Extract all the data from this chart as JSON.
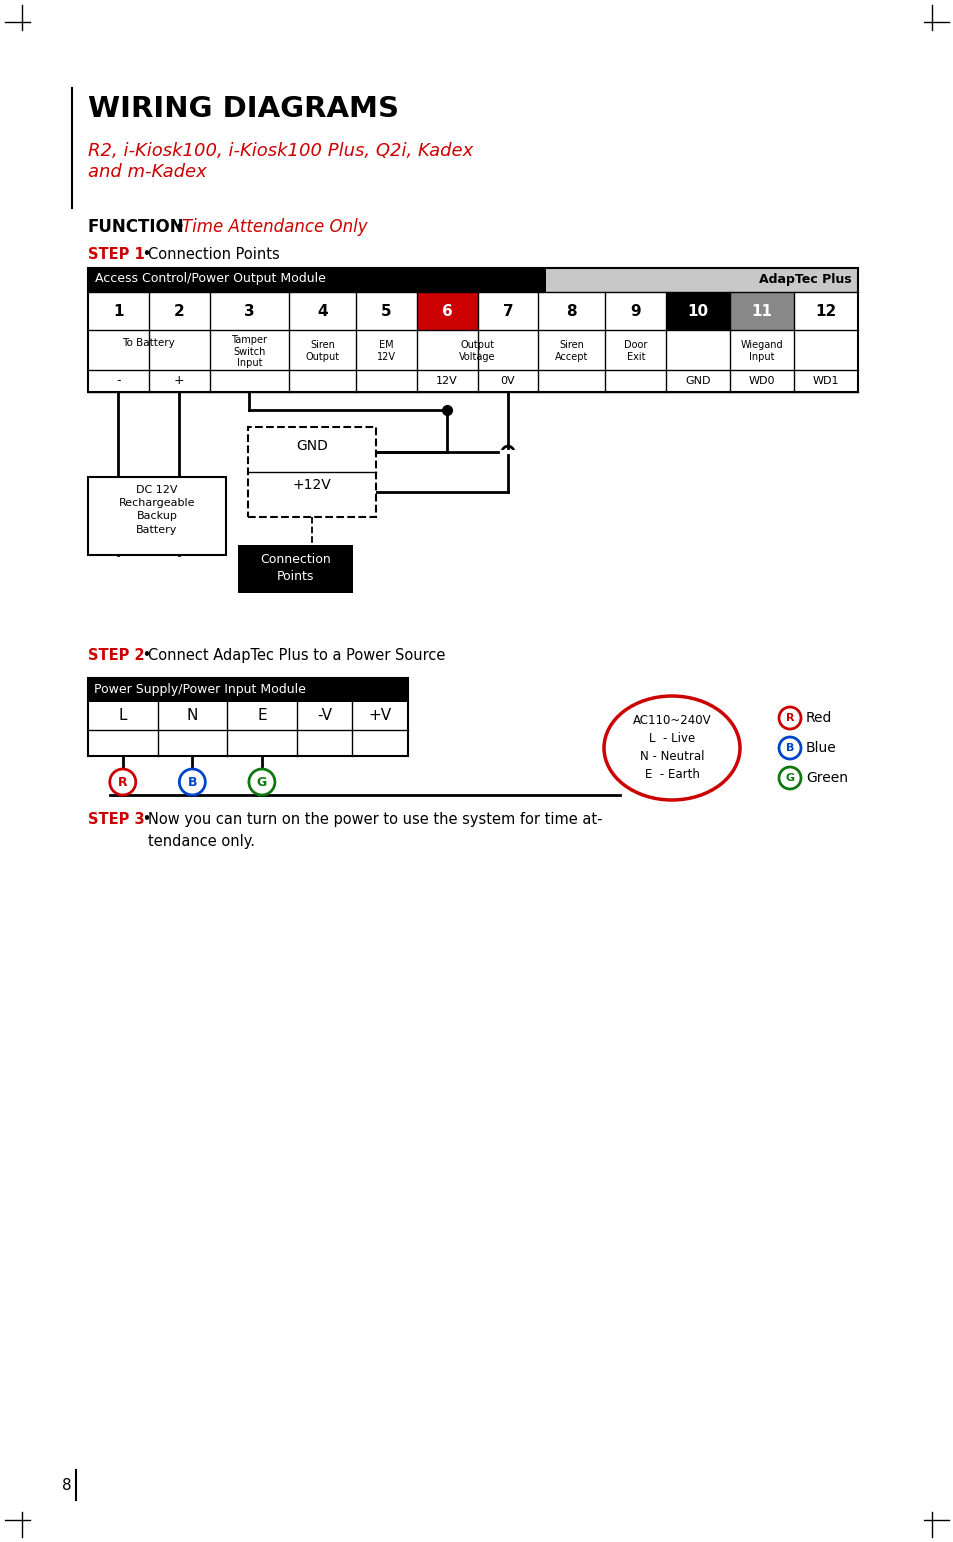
{
  "title_bold": "WIRING DIAGRAMS",
  "title_italic": "R2, i-Kiosk100, i-Kiosk100 Plus, Q2i, Kadex\nand m-Kadex",
  "function_label": "FUNCTION",
  "function_bullet": " • ",
  "function_desc": "Time Attendance Only",
  "step1_label": "STEP 1",
  "step1_bullet": " • ",
  "step1_desc": "Connection Points",
  "step2_label": "STEP 2",
  "step2_bullet": " • ",
  "step2_desc": "Connect AdapTec Plus to a Power Source",
  "step3_label": "STEP 3",
  "step3_bullet": " • ",
  "step3_line1": "Now you can turn on the power to use the system for time at-",
  "step3_line2": "tendance only.",
  "red_color": "#cc0000",
  "black_color": "#000000",
  "white_color": "#ffffff",
  "gray_col11": "#888888",
  "page_number": "8",
  "bg_color": "#ffffff",
  "col_labels": [
    "1",
    "2",
    "3",
    "4",
    "5",
    "6",
    "7",
    "8",
    "9",
    "10",
    "11",
    "12"
  ],
  "col_bg": [
    "white",
    "white",
    "white",
    "white",
    "white",
    "#cc0000",
    "white",
    "white",
    "white",
    "black",
    "#888888",
    "white"
  ],
  "col_fg": [
    "black",
    "black",
    "black",
    "black",
    "black",
    "white",
    "black",
    "black",
    "black",
    "white",
    "white",
    "black"
  ],
  "ps_cols": [
    "L",
    "N",
    "E",
    "-V",
    "+V"
  ]
}
